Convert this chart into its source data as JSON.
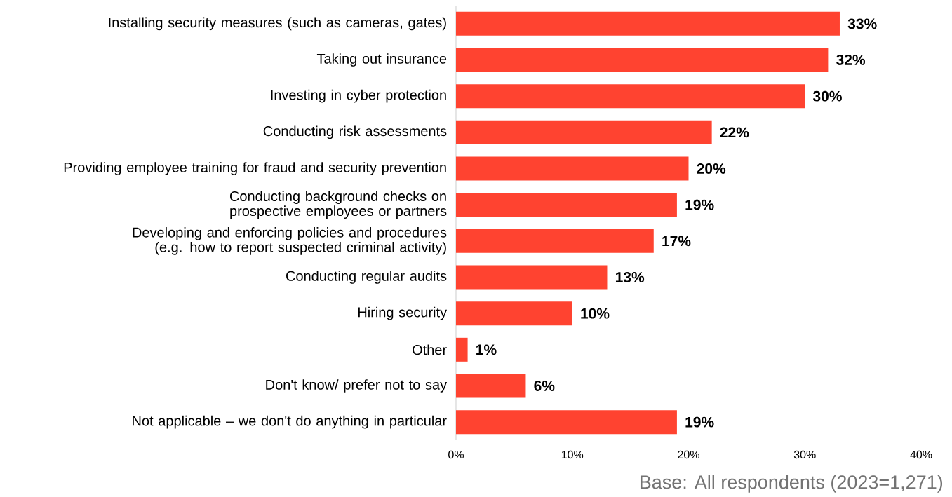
{
  "chart_data": {
    "type": "bar",
    "orientation": "horizontal",
    "categories": [
      "Installing security measures (such as cameras, gates)",
      "Taking out insurance",
      "Investing in cyber protection",
      "Conducting risk assessments",
      "Providing employee training for fraud and security prevention",
      "Conducting background checks on prospective employees or partners",
      "Developing and enforcing policies and procedures (e.g. how to report suspected criminal activity)",
      "Conducting regular audits",
      "Hiring security",
      "Other",
      "Don't know/ prefer not to say",
      "Not applicable – we don't do anything in particular"
    ],
    "values": [
      33,
      32,
      30,
      22,
      20,
      19,
      17,
      13,
      10,
      1,
      6,
      19
    ],
    "value_labels": [
      "33%",
      "32%",
      "30%",
      "22%",
      "20%",
      "19%",
      "17%",
      "13%",
      "10%",
      "1%",
      "6%",
      "19%"
    ],
    "color": "#ff4330",
    "xlim": [
      0,
      40
    ],
    "xticks": [
      {
        "value": 0,
        "label": "0%"
      },
      {
        "value": 10,
        "label": "10%"
      },
      {
        "value": 20,
        "label": "20%"
      },
      {
        "value": 30,
        "label": "30%"
      },
      {
        "value": 40,
        "label": "40%"
      }
    ],
    "annotations": [
      "Base: All respondents (2023=1,271)"
    ]
  }
}
